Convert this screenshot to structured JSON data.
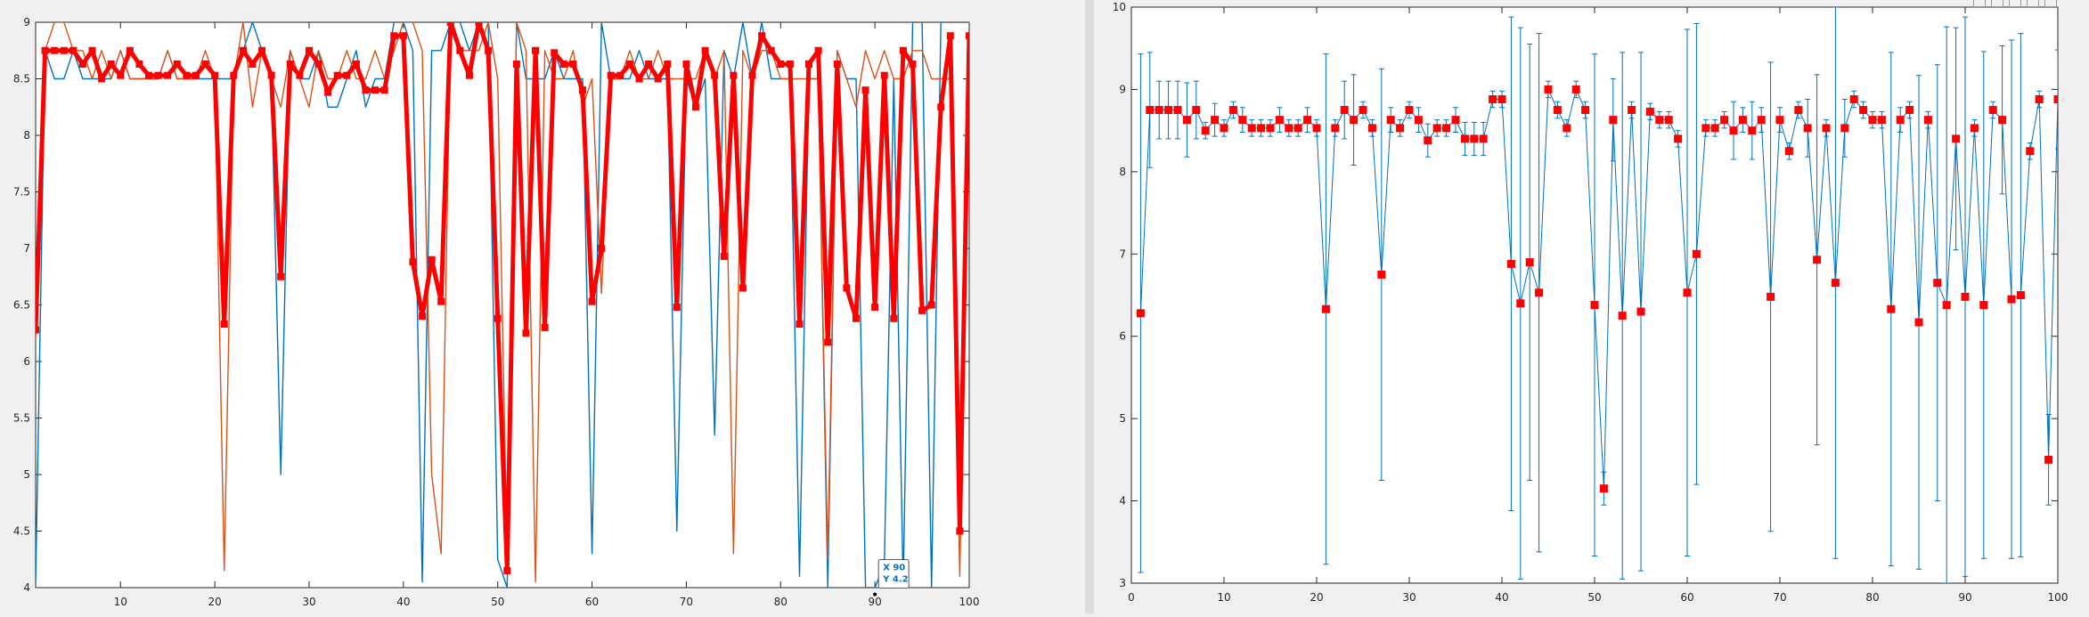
{
  "window": {
    "panels": 2,
    "background": "#f0f0f0",
    "axes_background": "#ffffff",
    "toolbar_icons": [
      "zoom-in-icon",
      "zoom-out-icon",
      "pan-icon",
      "data-tip-icon",
      "home-icon"
    ]
  },
  "datatip": {
    "x_label": "X 90",
    "y_label": "Y 4.2",
    "x": 90,
    "y": 4.2,
    "color": "#0072bd"
  },
  "chart_data": [
    {
      "type": "line",
      "title": "",
      "xlabel": "",
      "ylabel": "",
      "xlim": [
        1,
        100
      ],
      "ylim": [
        4,
        9
      ],
      "xticks": [
        10,
        20,
        30,
        40,
        50,
        60,
        70,
        80,
        90,
        100
      ],
      "yticks": [
        4,
        4.5,
        5,
        5.5,
        6,
        6.5,
        7,
        7.5,
        8,
        8.5,
        9
      ],
      "xtick_labels": [
        "10",
        "20",
        "30",
        "40",
        "50",
        "60",
        "70",
        "80",
        "90",
        "100"
      ],
      "ytick_labels": [
        "4",
        "4.5",
        "5",
        "5.5",
        "6",
        "6.5",
        "7",
        "7.5",
        "8",
        "8.5",
        "9"
      ],
      "grid": false,
      "colors": {
        "blue": "#0072bd",
        "orange": "#d95319",
        "red": "#ff0000"
      },
      "x": [
        1,
        2,
        3,
        4,
        5,
        6,
        7,
        8,
        9,
        10,
        11,
        12,
        13,
        14,
        15,
        16,
        17,
        18,
        19,
        20,
        21,
        22,
        23,
        24,
        25,
        26,
        27,
        28,
        29,
        30,
        31,
        32,
        33,
        34,
        35,
        36,
        37,
        38,
        39,
        40,
        41,
        42,
        43,
        44,
        45,
        46,
        47,
        48,
        49,
        50,
        51,
        52,
        53,
        54,
        55,
        56,
        57,
        58,
        59,
        60,
        61,
        62,
        63,
        64,
        65,
        66,
        67,
        68,
        69,
        70,
        71,
        72,
        73,
        74,
        75,
        76,
        77,
        78,
        79,
        80,
        81,
        82,
        83,
        84,
        85,
        86,
        87,
        88,
        89,
        90,
        91,
        92,
        93,
        94,
        95,
        96,
        97,
        98,
        99,
        100
      ],
      "series": [
        {
          "values": [
            4.05,
            8.75,
            8.5,
            8.5,
            8.75,
            8.5,
            8.5,
            8.5,
            8.5,
            8.75,
            8.5,
            8.5,
            8.5,
            8.5,
            8.75,
            8.5,
            8.5,
            8.5,
            8.5,
            8.5,
            8.5,
            8.5,
            8.75,
            9.0,
            8.75,
            8.5,
            5.0,
            8.75,
            8.5,
            8.5,
            8.75,
            8.25,
            8.25,
            8.5,
            8.75,
            8.25,
            8.5,
            8.5,
            9.0,
            9.0,
            8.75,
            4.05,
            8.75,
            8.75,
            9.0,
            9.0,
            8.75,
            9.0,
            9.0,
            4.25,
            4.0,
            9.0,
            8.5,
            8.5,
            8.5,
            8.75,
            8.5,
            8.5,
            8.5,
            4.3,
            9.0,
            8.5,
            8.5,
            8.5,
            8.75,
            8.5,
            8.5,
            8.5,
            4.5,
            8.5,
            8.25,
            8.5,
            5.35,
            8.75,
            8.5,
            9.0,
            8.5,
            9.0,
            8.5,
            8.5,
            8.5,
            4.1,
            8.5,
            8.5,
            4.0,
            8.75,
            8.5,
            8.5,
            4.0,
            4.0,
            4.2,
            8.5,
            4.0,
            9.0,
            9.0,
            4.0,
            9.0,
            9.0,
            9.0,
            9.0
          ]
        },
        {
          "values": [
            6.2,
            8.75,
            9.0,
            9.0,
            8.75,
            8.75,
            8.5,
            8.75,
            8.5,
            8.75,
            8.5,
            8.5,
            8.5,
            8.5,
            8.75,
            8.5,
            8.5,
            8.5,
            8.75,
            8.5,
            4.15,
            8.5,
            9.0,
            8.25,
            8.75,
            8.5,
            8.25,
            8.75,
            8.5,
            8.25,
            8.75,
            8.5,
            8.5,
            8.75,
            8.5,
            8.5,
            8.75,
            8.5,
            8.75,
            9.0,
            9.0,
            8.75,
            5.0,
            4.3,
            9.0,
            8.75,
            8.75,
            8.75,
            9.0,
            8.5,
            4.25,
            9.0,
            8.75,
            4.05,
            8.75,
            8.5,
            8.5,
            8.75,
            8.25,
            8.5,
            6.6,
            8.5,
            8.5,
            8.75,
            8.5,
            8.5,
            8.75,
            8.5,
            8.5,
            8.5,
            8.5,
            8.75,
            8.5,
            8.75,
            4.3,
            8.75,
            8.5,
            8.75,
            8.75,
            8.5,
            8.5,
            8.5,
            8.5,
            8.5,
            4.25,
            8.75,
            8.5,
            8.25,
            8.75,
            8.5,
            8.75,
            8.5,
            8.5,
            8.75,
            8.75,
            8.5,
            8.5,
            8.5,
            4.1,
            9.0
          ]
        },
        {
          "values": [
            6.28,
            8.75,
            8.75,
            8.75,
            8.75,
            8.63,
            8.75,
            8.5,
            8.63,
            8.53,
            8.75,
            8.63,
            8.53,
            8.53,
            8.53,
            8.63,
            8.53,
            8.53,
            8.63,
            8.53,
            6.33,
            8.53,
            8.75,
            8.63,
            8.75,
            8.53,
            6.75,
            8.63,
            8.53,
            8.75,
            8.63,
            8.38,
            8.53,
            8.53,
            8.63,
            8.4,
            8.4,
            8.4,
            8.88,
            8.88,
            6.88,
            6.4,
            6.9,
            6.53,
            9.0,
            8.75,
            8.53,
            9.0,
            8.75,
            6.38,
            4.15,
            8.63,
            6.25,
            8.75,
            6.3,
            8.73,
            8.63,
            8.63,
            8.4,
            6.53,
            7.0,
            8.53,
            8.53,
            8.63,
            8.5,
            8.63,
            8.5,
            8.63,
            6.48,
            8.63,
            8.25,
            8.75,
            8.53,
            6.93,
            8.53,
            6.65,
            8.53,
            8.88,
            8.75,
            8.63,
            8.63,
            6.33,
            8.63,
            8.75,
            6.17,
            8.63,
            6.65,
            6.38,
            8.4,
            6.48,
            8.53,
            6.38,
            8.75,
            8.63,
            6.45,
            6.5,
            8.25,
            8.88,
            4.5,
            8.88
          ]
        }
      ]
    },
    {
      "type": "scatter",
      "title": "",
      "xlabel": "",
      "ylabel": "",
      "xlim": [
        0,
        100
      ],
      "ylim": [
        3,
        10
      ],
      "xticks": [
        0,
        10,
        20,
        30,
        40,
        50,
        60,
        70,
        80,
        90,
        100
      ],
      "yticks": [
        3,
        4,
        5,
        6,
        7,
        8,
        9,
        10
      ],
      "xtick_labels": [
        "0",
        "10",
        "20",
        "30",
        "40",
        "50",
        "60",
        "70",
        "80",
        "90",
        "100"
      ],
      "ytick_labels": [
        "3",
        "4",
        "5",
        "6",
        "7",
        "8",
        "9",
        "10"
      ],
      "grid": false,
      "error_bars": true,
      "colors": {
        "line": "#0072bd",
        "marker": "#ff0000"
      },
      "x": [
        1,
        2,
        3,
        4,
        5,
        6,
        7,
        8,
        9,
        10,
        11,
        12,
        13,
        14,
        15,
        16,
        17,
        18,
        19,
        20,
        21,
        22,
        23,
        24,
        25,
        26,
        27,
        28,
        29,
        30,
        31,
        32,
        33,
        34,
        35,
        36,
        37,
        38,
        39,
        40,
        41,
        42,
        43,
        44,
        45,
        46,
        47,
        48,
        49,
        50,
        51,
        52,
        53,
        54,
        55,
        56,
        57,
        58,
        59,
        60,
        61,
        62,
        63,
        64,
        65,
        66,
        67,
        68,
        69,
        70,
        71,
        72,
        73,
        74,
        75,
        76,
        77,
        78,
        79,
        80,
        81,
        82,
        83,
        84,
        85,
        86,
        87,
        88,
        89,
        90,
        91,
        92,
        93,
        94,
        95,
        96,
        97,
        98,
        99,
        100
      ],
      "means": [
        6.28,
        8.75,
        8.75,
        8.75,
        8.75,
        8.63,
        8.75,
        8.5,
        8.63,
        8.53,
        8.75,
        8.63,
        8.53,
        8.53,
        8.53,
        8.63,
        8.53,
        8.53,
        8.63,
        8.53,
        6.33,
        8.53,
        8.75,
        8.63,
        8.75,
        8.53,
        6.75,
        8.63,
        8.53,
        8.75,
        8.63,
        8.38,
        8.53,
        8.53,
        8.63,
        8.4,
        8.4,
        8.4,
        8.88,
        8.88,
        6.88,
        6.4,
        6.9,
        6.53,
        9.0,
        8.75,
        8.53,
        9.0,
        8.75,
        6.38,
        4.15,
        8.63,
        6.25,
        8.75,
        6.3,
        8.73,
        8.63,
        8.63,
        8.4,
        6.53,
        7.0,
        8.53,
        8.53,
        8.63,
        8.5,
        8.63,
        8.5,
        8.63,
        6.48,
        8.63,
        8.25,
        8.75,
        8.53,
        6.93,
        8.53,
        6.65,
        8.53,
        8.88,
        8.75,
        8.63,
        8.63,
        6.33,
        8.63,
        8.75,
        6.17,
        8.63,
        6.65,
        6.38,
        8.4,
        6.48,
        8.53,
        6.38,
        8.75,
        8.63,
        6.45,
        6.5,
        8.25,
        8.88,
        4.5,
        8.88
      ],
      "errors": [
        3.15,
        0.7,
        0.35,
        0.35,
        0.35,
        0.45,
        0.35,
        0.1,
        0.2,
        0.1,
        0.1,
        0.15,
        0.1,
        0.1,
        0.1,
        0.15,
        0.1,
        0.1,
        0.15,
        0.1,
        3.1,
        0.1,
        0.35,
        0.55,
        0.1,
        0.1,
        2.5,
        0.15,
        0.1,
        0.1,
        0.15,
        0.2,
        0.1,
        0.1,
        0.15,
        0.2,
        0.2,
        0.2,
        0.1,
        0.1,
        3.0,
        3.35,
        2.65,
        3.15,
        0.1,
        0.1,
        0.1,
        0.1,
        0.1,
        3.05,
        0.2,
        0.5,
        3.2,
        0.1,
        3.15,
        0.1,
        0.1,
        0.1,
        0.1,
        3.2,
        2.8,
        0.1,
        0.1,
        0.1,
        0.35,
        0.15,
        0.35,
        0.15,
        2.85,
        0.15,
        0.1,
        0.1,
        0.35,
        2.25,
        0.1,
        3.35,
        0.35,
        0.1,
        0.1,
        0.1,
        0.1,
        3.12,
        0.15,
        0.1,
        3.0,
        0.1,
        2.65,
        3.38,
        1.35,
        3.4,
        0.1,
        3.08,
        0.1,
        0.9,
        3.15,
        3.18,
        0.1,
        0.1,
        0.55,
        0.6
      ]
    }
  ]
}
